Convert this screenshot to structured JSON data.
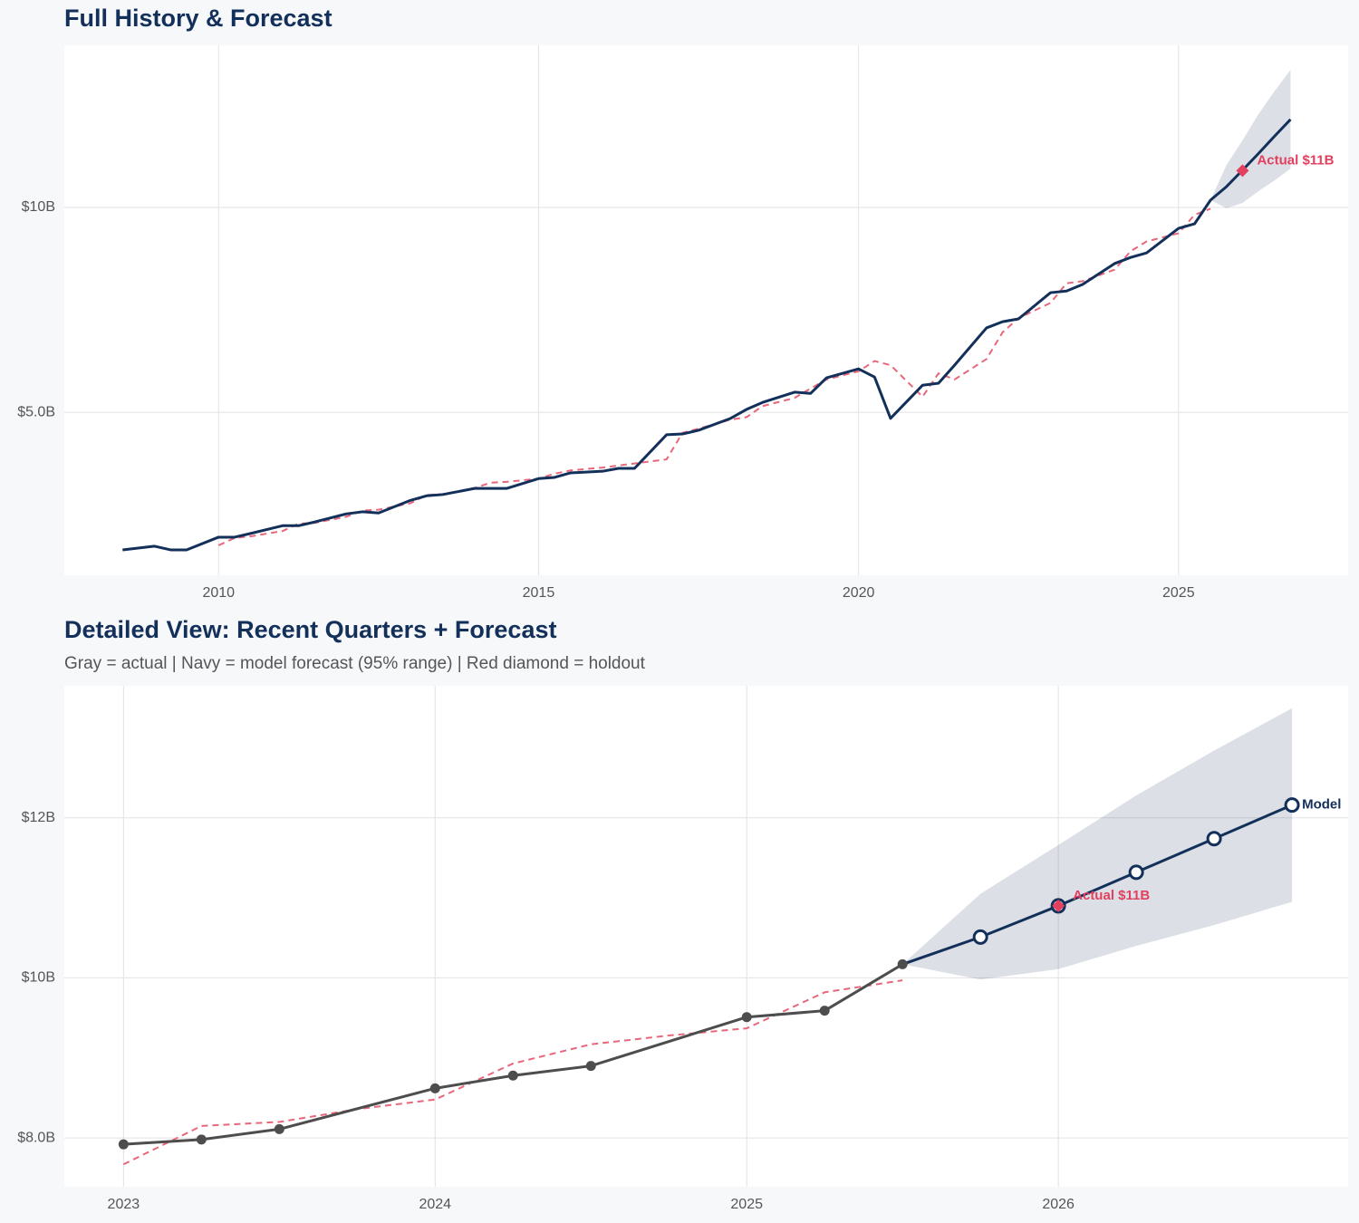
{
  "chart_data": [
    {
      "type": "line",
      "title": "Full History & Forecast",
      "xlim": [
        2007.59,
        2027.65
      ],
      "xticks": [
        2010,
        2015,
        2020,
        2025
      ],
      "ylim": [
        1.02,
        13.96
      ],
      "yticks": [
        {
          "value": 5,
          "label": "$5.0B"
        },
        {
          "value": 10,
          "label": "$10B"
        }
      ],
      "grid": true,
      "band": {
        "color": "#13305a",
        "x": [
          2025.5,
          2025.75,
          2026,
          2026.25,
          2026.5,
          2026.75
        ],
        "upper": [
          10.18,
          11.04,
          11.64,
          12.28,
          12.84,
          13.36
        ],
        "lower": [
          10.18,
          9.98,
          10.11,
          10.4,
          10.66,
          10.95
        ]
      },
      "series": [
        {
          "color": "#e8677a",
          "dash": true,
          "x": [
            2010,
            2010.25,
            2010.5,
            2011,
            2011.25,
            2011.5,
            2012,
            2012.25,
            2012.5,
            2013,
            2013.25,
            2013.5,
            2014,
            2014.25,
            2014.5,
            2015,
            2015.25,
            2015.5,
            2016,
            2016.25,
            2016.5,
            2017,
            2017.25,
            2017.5,
            2018,
            2018.25,
            2018.5,
            2019,
            2019.25,
            2019.5,
            2020,
            2020.25,
            2020.5,
            2021,
            2021.25,
            2021.5,
            2022,
            2022.25,
            2022.5,
            2023,
            2023.25,
            2023.5,
            2024,
            2024.25,
            2024.5,
            2025,
            2025.25,
            2025.5
          ],
          "values": [
            1.75,
            1.93,
            1.97,
            2.1,
            2.28,
            2.3,
            2.45,
            2.6,
            2.62,
            2.78,
            2.98,
            3.0,
            3.15,
            3.28,
            3.3,
            3.38,
            3.5,
            3.58,
            3.65,
            3.7,
            3.75,
            3.85,
            4.5,
            4.6,
            4.82,
            4.88,
            5.15,
            5.35,
            5.58,
            5.8,
            6.0,
            6.25,
            6.15,
            5.38,
            5.95,
            5.8,
            6.3,
            6.95,
            7.3,
            7.67,
            8.15,
            8.2,
            8.48,
            8.93,
            9.17,
            9.37,
            9.82,
            9.97
          ]
        },
        {
          "color": "#13305a",
          "x": [
            2008.5,
            2009,
            2009.25,
            2009.5,
            2010,
            2010.25,
            2010.5,
            2011,
            2011.25,
            2011.5,
            2012,
            2012.25,
            2012.5,
            2013,
            2013.25,
            2013.5,
            2014,
            2014.25,
            2014.5,
            2015,
            2015.25,
            2015.5,
            2016,
            2016.25,
            2016.5,
            2017,
            2017.25,
            2017.5,
            2018,
            2018.25,
            2018.5,
            2019,
            2019.25,
            2019.5,
            2020,
            2020.25,
            2020.5,
            2021,
            2021.25,
            2021.5,
            2022,
            2022.25,
            2022.5,
            2023,
            2023.25,
            2023.5,
            2024,
            2024.25,
            2024.5,
            2025,
            2025.25,
            2025.5,
            2025.75,
            2026,
            2026.25,
            2026.5,
            2026.75
          ],
          "values": [
            1.64,
            1.73,
            1.64,
            1.64,
            1.95,
            1.95,
            2.04,
            2.23,
            2.23,
            2.32,
            2.52,
            2.57,
            2.54,
            2.85,
            2.96,
            2.99,
            3.14,
            3.14,
            3.14,
            3.38,
            3.41,
            3.52,
            3.56,
            3.63,
            3.63,
            4.45,
            4.47,
            4.56,
            4.85,
            5.07,
            5.24,
            5.49,
            5.46,
            5.84,
            6.06,
            5.86,
            4.85,
            5.66,
            5.71,
            6.15,
            7.06,
            7.21,
            7.28,
            7.92,
            7.96,
            8.12,
            8.63,
            8.78,
            8.89,
            9.49,
            9.6,
            10.18,
            10.51,
            10.91,
            11.32,
            11.74,
            12.15
          ]
        }
      ],
      "holdout": {
        "x": 2026.0,
        "y": 10.9,
        "label": "Actual $11B",
        "color": "#e2405e"
      }
    },
    {
      "type": "line",
      "title": "Detailed View: Recent Quarters + Forecast",
      "subtitle": "Gray = actual  |  Navy = model forecast (95% range)  |  Red diamond = holdout",
      "xlim": [
        2022.81,
        2026.93
      ],
      "xticks": [
        2023,
        2024,
        2025,
        2026
      ],
      "ylim": [
        7.39,
        13.65
      ],
      "yticks": [
        {
          "value": 8,
          "label": "$8.0B"
        },
        {
          "value": 10,
          "label": "$10B"
        },
        {
          "value": 12,
          "label": "$12B"
        }
      ],
      "grid": true,
      "band": {
        "color": "#13305a",
        "x": [
          2025.5,
          2025.75,
          2026,
          2026.25,
          2026.5,
          2026.75
        ],
        "upper": [
          10.17,
          11.05,
          11.66,
          12.28,
          12.84,
          13.37
        ],
        "lower": [
          10.17,
          9.98,
          10.11,
          10.4,
          10.66,
          10.95
        ]
      },
      "series": [
        {
          "color": "#e8677a",
          "dash": true,
          "x": [
            2023,
            2023.25,
            2023.5,
            2023.75,
            2024,
            2024.25,
            2024.5,
            2024.75,
            2025,
            2025.25,
            2025.5
          ],
          "values": [
            7.67,
            8.15,
            8.2,
            8.36,
            8.48,
            8.93,
            9.17,
            9.28,
            9.37,
            9.82,
            9.97
          ]
        },
        {
          "color": "#4d4d4d",
          "marker": "filled",
          "x": [
            2023,
            2023.25,
            2023.5,
            2024,
            2024.25,
            2024.5,
            2025,
            2025.25,
            2025.5
          ],
          "values": [
            7.92,
            7.98,
            8.11,
            8.62,
            8.78,
            8.9,
            9.51,
            9.59,
            10.17
          ]
        },
        {
          "name": "Model",
          "color": "#13305a",
          "marker": "hollow",
          "connect": true,
          "x": [
            2025.75,
            2026,
            2026.25,
            2026.5,
            2026.75
          ],
          "values": [
            10.51,
            10.9,
            11.32,
            11.74,
            12.16
          ]
        }
      ],
      "holdout": {
        "x": 2026.0,
        "y": 10.9,
        "label": "Actual $11B",
        "color": "#e2405e"
      }
    }
  ]
}
